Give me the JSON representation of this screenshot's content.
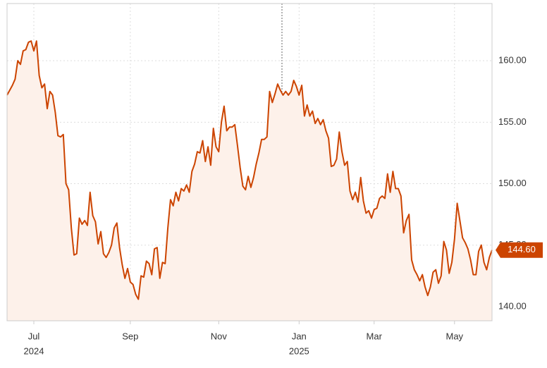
{
  "chart_data": {
    "type": "line",
    "color": "#cc4400",
    "area_color": "#fdf1ea",
    "grid": true,
    "xlim": [
      0,
      181
    ],
    "xticks": [
      {
        "value": 10,
        "label": "Jul"
      },
      {
        "value": 46,
        "label": "Sep"
      },
      {
        "value": 79,
        "label": "Nov"
      },
      {
        "value": 109,
        "label": "Jan"
      },
      {
        "value": 137,
        "label": "Mar"
      },
      {
        "value": 167,
        "label": "May"
      }
    ],
    "year_labels": [
      {
        "value": 10,
        "label": "2024"
      },
      {
        "value": 109,
        "label": "2025"
      }
    ],
    "ylim": [
      138.85,
      164.65
    ],
    "yticks": [
      {
        "value": 140,
        "label": "140.00"
      },
      {
        "value": 145,
        "label": "145.00"
      },
      {
        "value": 150,
        "label": "150.00"
      },
      {
        "value": 155,
        "label": "155.00"
      },
      {
        "value": 160,
        "label": "160.00"
      }
    ],
    "values": [
      157.2,
      157.6,
      158.0,
      158.5,
      160.0,
      159.7,
      160.8,
      160.9,
      161.5,
      161.6,
      160.8,
      161.6,
      158.8,
      157.8,
      158.1,
      156.1,
      157.5,
      157.2,
      155.8,
      153.9,
      153.8,
      154.0,
      150.0,
      149.5,
      146.4,
      144.2,
      144.3,
      147.2,
      146.7,
      147.0,
      146.6,
      149.3,
      147.4,
      146.9,
      145.1,
      146.1,
      144.3,
      144.0,
      144.4,
      145.0,
      146.4,
      146.8,
      144.8,
      143.4,
      142.3,
      143.1,
      142.0,
      141.8,
      141.0,
      140.6,
      142.5,
      142.4,
      143.7,
      143.5,
      142.6,
      144.7,
      144.8,
      142.3,
      143.6,
      143.5,
      146.4,
      148.7,
      148.2,
      149.3,
      148.6,
      149.6,
      149.4,
      149.9,
      149.3,
      151.0,
      151.6,
      152.6,
      152.5,
      153.5,
      151.8,
      153.0,
      151.5,
      154.5,
      153.0,
      152.6,
      155.0,
      156.3,
      154.3,
      154.6,
      154.6,
      154.8,
      153.1,
      151.3,
      149.8,
      149.5,
      150.6,
      149.7,
      150.5,
      151.6,
      152.5,
      153.6,
      153.6,
      153.8,
      157.5,
      156.6,
      157.3,
      158.1,
      157.6,
      157.2,
      157.5,
      157.2,
      157.5,
      158.4,
      157.9,
      157.2,
      158.0,
      155.5,
      156.4,
      155.5,
      155.9,
      154.9,
      155.3,
      154.8,
      155.2,
      154.3,
      153.7,
      151.4,
      151.5,
      152.0,
      154.2,
      152.6,
      151.5,
      151.8,
      149.4,
      148.7,
      149.3,
      148.5,
      150.5,
      148.6,
      147.6,
      147.8,
      147.2,
      147.9,
      148.0,
      148.8,
      149.0,
      148.8,
      150.8,
      149.3,
      151.0,
      149.6,
      149.6,
      149.0,
      146.0,
      147.0,
      147.5,
      143.8,
      143.0,
      142.6,
      142.1,
      142.6,
      141.6,
      140.9,
      141.6,
      142.8,
      143.0,
      141.9,
      142.5,
      145.3,
      144.6,
      142.7,
      143.6,
      145.5,
      148.4,
      147.0,
      145.6,
      145.2,
      144.7,
      143.8,
      142.6,
      142.6,
      144.5,
      145.0,
      143.6,
      143.0,
      144.0,
      144.6
    ],
    "last_value_label": "144.60"
  }
}
